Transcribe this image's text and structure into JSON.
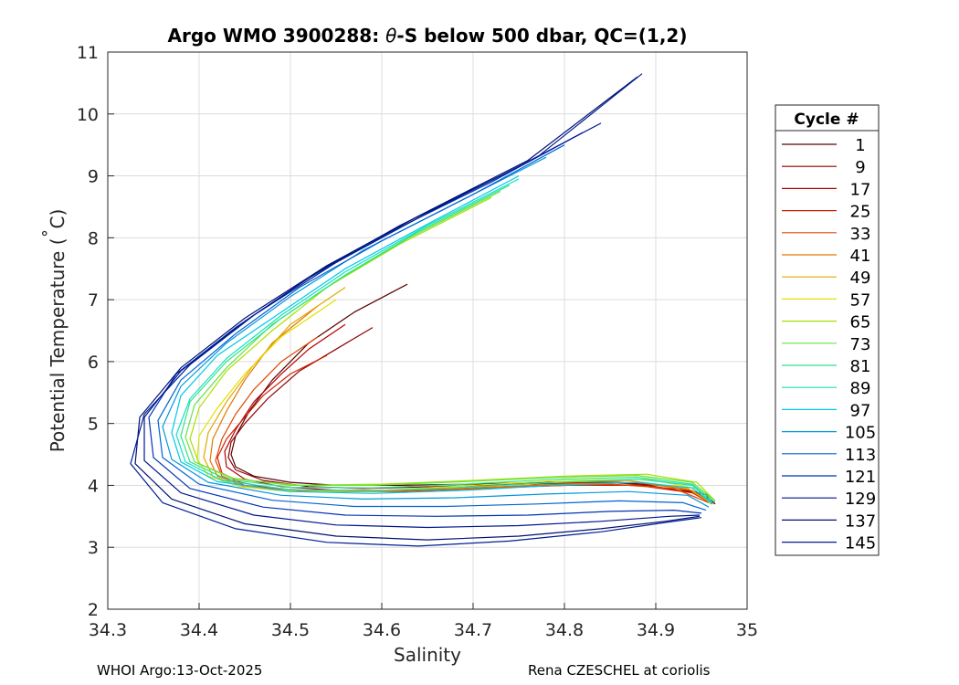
{
  "chart_data": {
    "type": "line",
    "title": "Argo WMO 3900288: θ-S below 500 dbar,  QC=(1,2)",
    "title_prefix": "Argo WMO 3900288: ",
    "title_theta": "θ",
    "title_suffix": "-S below 500 dbar,  QC=(1,2)",
    "xlabel": "Salinity",
    "ylabel_prefix": "Potential Temperature (",
    "ylabel_degree": "˚",
    "ylabel_suffix": "C)",
    "xlim": [
      34.3,
      35
    ],
    "ylim": [
      2,
      11
    ],
    "xticks": [
      34.3,
      34.4,
      34.5,
      34.6,
      34.7,
      34.8,
      34.9,
      35
    ],
    "xtick_labels": [
      "34.3",
      "34.4",
      "34.5",
      "34.6",
      "34.7",
      "34.8",
      "34.9",
      "35"
    ],
    "yticks": [
      2,
      3,
      4,
      5,
      6,
      7,
      8,
      9,
      10,
      11
    ],
    "ytick_labels": [
      "2",
      "3",
      "4",
      "5",
      "6",
      "7",
      "8",
      "9",
      "10",
      "11"
    ],
    "grid": true,
    "legend": {
      "title": "Cycle #",
      "placement": "right",
      "entries": [
        {
          "label": "1",
          "color": "#5a0000"
        },
        {
          "label": "9",
          "color": "#8c0000"
        },
        {
          "label": "17",
          "color": "#b40000"
        },
        {
          "label": "25",
          "color": "#d21e00"
        },
        {
          "label": "33",
          "color": "#e04800"
        },
        {
          "label": "41",
          "color": "#e27800"
        },
        {
          "label": "49",
          "color": "#e2a800"
        },
        {
          "label": "57",
          "color": "#e0e000"
        },
        {
          "label": "65",
          "color": "#a8e000"
        },
        {
          "label": "73",
          "color": "#66e24a"
        },
        {
          "label": "81",
          "color": "#2ee28a"
        },
        {
          "label": "89",
          "color": "#10e2c0"
        },
        {
          "label": "97",
          "color": "#00c8e6"
        },
        {
          "label": "105",
          "color": "#0098dc"
        },
        {
          "label": "113",
          "color": "#0064d2"
        },
        {
          "label": "121",
          "color": "#0034b4"
        },
        {
          "label": "129",
          "color": "#00148c"
        },
        {
          "label": "137",
          "color": "#00126e"
        },
        {
          "label": "145",
          "color": "#001e96"
        }
      ]
    },
    "series": [
      {
        "name": "1",
        "color": "#5a0000",
        "x": [
          34.628,
          34.57,
          34.52,
          34.48,
          34.455,
          34.44,
          34.435,
          34.44,
          34.46,
          34.5,
          34.55,
          34.62,
          34.7,
          34.78,
          34.86,
          34.92,
          34.955,
          34.96
        ],
        "y": [
          7.25,
          6.8,
          6.3,
          5.7,
          5.2,
          4.8,
          4.5,
          4.3,
          4.15,
          4.05,
          4.0,
          4.0,
          4.02,
          4.05,
          4.05,
          3.98,
          3.85,
          3.7
        ]
      },
      {
        "name": "9",
        "color": "#8c0000",
        "x": [
          34.59,
          34.55,
          34.51,
          34.475,
          34.45,
          34.435,
          34.432,
          34.44,
          34.47,
          34.52,
          34.58,
          34.66,
          34.75,
          34.84,
          34.91,
          34.955,
          34.965
        ],
        "y": [
          6.55,
          6.2,
          5.85,
          5.4,
          5.0,
          4.7,
          4.45,
          4.25,
          4.08,
          3.98,
          3.95,
          3.98,
          4.02,
          4.05,
          4.0,
          3.85,
          3.7
        ]
      },
      {
        "name": "17",
        "color": "#b40000",
        "x": [
          34.56,
          34.52,
          34.49,
          34.46,
          34.44,
          34.428,
          34.43,
          34.45,
          34.49,
          34.55,
          34.63,
          34.72,
          34.81,
          34.89,
          34.945,
          34.965
        ],
        "y": [
          6.6,
          6.2,
          5.8,
          5.35,
          4.9,
          4.55,
          4.3,
          4.1,
          3.98,
          3.92,
          3.92,
          3.97,
          4.02,
          4.0,
          3.88,
          3.7
        ]
      },
      {
        "name": "25",
        "color": "#d21e00",
        "x": [
          34.54,
          34.5,
          34.47,
          34.45,
          34.43,
          34.42,
          34.425,
          34.445,
          34.48,
          34.54,
          34.62,
          34.71,
          34.8,
          34.88,
          34.94,
          34.962
        ],
        "y": [
          6.1,
          5.8,
          5.45,
          5.1,
          4.75,
          4.45,
          4.2,
          4.05,
          3.95,
          3.9,
          3.9,
          3.95,
          4.0,
          4.0,
          3.88,
          3.7
        ]
      },
      {
        "name": "33",
        "color": "#e04800",
        "x": [
          34.53,
          34.49,
          34.46,
          34.44,
          34.425,
          34.418,
          34.425,
          34.45,
          34.5,
          34.57,
          34.66,
          34.76,
          34.85,
          34.92,
          34.958
        ],
        "y": [
          6.4,
          6.0,
          5.55,
          5.15,
          4.75,
          4.4,
          4.15,
          4.0,
          3.92,
          3.9,
          3.93,
          3.98,
          4.02,
          3.95,
          3.72
        ]
      },
      {
        "name": "41",
        "color": "#e27800",
        "x": [
          34.53,
          34.48,
          34.45,
          34.43,
          34.415,
          34.412,
          34.42,
          34.45,
          34.51,
          34.59,
          34.69,
          34.79,
          34.88,
          34.94,
          34.962
        ],
        "y": [
          6.9,
          6.3,
          5.7,
          5.2,
          4.75,
          4.4,
          4.15,
          3.98,
          3.9,
          3.9,
          3.95,
          4.02,
          4.05,
          3.92,
          3.7
        ]
      },
      {
        "name": "49",
        "color": "#e2a800",
        "x": [
          34.56,
          34.5,
          34.46,
          34.43,
          34.41,
          34.405,
          34.415,
          34.445,
          34.5,
          34.58,
          34.68,
          34.78,
          34.87,
          34.935,
          34.96
        ],
        "y": [
          7.2,
          6.6,
          5.95,
          5.35,
          4.85,
          4.45,
          4.15,
          3.98,
          3.9,
          3.9,
          3.96,
          4.04,
          4.08,
          3.95,
          3.72
        ]
      },
      {
        "name": "57",
        "color": "#e0e000",
        "x": [
          34.55,
          34.49,
          34.45,
          34.42,
          34.4,
          34.398,
          34.41,
          34.445,
          34.51,
          34.6,
          34.7,
          34.8,
          34.89,
          34.945,
          34.96
        ],
        "y": [
          7.0,
          6.4,
          5.8,
          5.25,
          4.8,
          4.42,
          4.15,
          3.98,
          3.9,
          3.92,
          4.0,
          4.08,
          4.1,
          3.95,
          3.7
        ]
      },
      {
        "name": "65",
        "color": "#a8e000",
        "x": [
          34.72,
          34.62,
          34.54,
          34.48,
          34.43,
          34.4,
          34.39,
          34.4,
          34.44,
          34.51,
          34.6,
          34.7,
          34.8,
          34.89,
          34.945,
          34.965
        ],
        "y": [
          8.65,
          7.9,
          7.2,
          6.5,
          5.85,
          5.25,
          4.75,
          4.35,
          4.1,
          4.0,
          4.02,
          4.08,
          4.15,
          4.18,
          4.05,
          3.75
        ]
      },
      {
        "name": "73",
        "color": "#66e24a",
        "x": [
          34.73,
          34.63,
          34.55,
          34.48,
          34.43,
          34.395,
          34.385,
          34.395,
          34.435,
          34.5,
          34.59,
          34.69,
          34.79,
          34.88,
          34.94,
          34.965
        ],
        "y": [
          8.75,
          8.0,
          7.3,
          6.6,
          5.9,
          5.3,
          4.78,
          4.38,
          4.12,
          4.0,
          4.0,
          4.06,
          4.13,
          4.16,
          4.05,
          3.75
        ]
      },
      {
        "name": "81",
        "color": "#2ee28a",
        "x": [
          34.74,
          34.64,
          34.56,
          34.49,
          34.43,
          34.39,
          34.38,
          34.39,
          34.43,
          34.5,
          34.59,
          34.69,
          34.79,
          34.88,
          34.94,
          34.965
        ],
        "y": [
          8.85,
          8.1,
          7.4,
          6.7,
          6.0,
          5.35,
          4.8,
          4.38,
          4.1,
          3.97,
          3.96,
          4.02,
          4.1,
          4.13,
          4.02,
          3.72
        ]
      },
      {
        "name": "89",
        "color": "#10e2c0",
        "x": [
          34.75,
          34.65,
          34.56,
          34.49,
          34.43,
          34.39,
          34.375,
          34.385,
          34.425,
          34.5,
          34.59,
          34.69,
          34.79,
          34.88,
          34.94,
          34.962
        ],
        "y": [
          8.95,
          8.2,
          7.45,
          6.75,
          6.05,
          5.4,
          4.82,
          4.38,
          4.08,
          3.93,
          3.91,
          3.97,
          4.05,
          4.1,
          4.0,
          3.72
        ]
      },
      {
        "name": "97",
        "color": "#00c8e6",
        "x": [
          34.75,
          34.65,
          34.56,
          34.49,
          34.42,
          34.38,
          34.37,
          34.38,
          34.42,
          34.5,
          34.59,
          34.69,
          34.79,
          34.88,
          34.94,
          34.962
        ],
        "y": [
          9.0,
          8.22,
          7.5,
          6.8,
          6.1,
          5.45,
          4.85,
          4.38,
          4.06,
          3.9,
          3.87,
          3.92,
          4.0,
          4.05,
          3.96,
          3.7
        ]
      },
      {
        "name": "105",
        "color": "#0098dc",
        "x": [
          34.78,
          34.68,
          34.58,
          34.5,
          34.43,
          34.38,
          34.36,
          34.37,
          34.41,
          34.49,
          34.58,
          34.68,
          34.78,
          34.87,
          34.935,
          34.958
        ],
        "y": [
          9.3,
          8.55,
          7.8,
          7.05,
          6.3,
          5.6,
          4.95,
          4.42,
          4.05,
          3.84,
          3.78,
          3.8,
          3.86,
          3.9,
          3.84,
          3.65
        ]
      },
      {
        "name": "113",
        "color": "#0064d2",
        "x": [
          34.8,
          34.7,
          34.6,
          34.51,
          34.44,
          34.38,
          34.355,
          34.36,
          34.4,
          34.48,
          34.57,
          34.67,
          34.77,
          34.86,
          34.93,
          34.955
        ],
        "y": [
          9.5,
          8.7,
          7.95,
          7.2,
          6.45,
          5.7,
          5.05,
          4.45,
          4.02,
          3.76,
          3.66,
          3.66,
          3.7,
          3.75,
          3.72,
          3.6
        ]
      },
      {
        "name": "121",
        "color": "#0034b4",
        "x": [
          34.82,
          34.72,
          34.61,
          34.52,
          34.44,
          34.375,
          34.345,
          34.35,
          34.39,
          34.47,
          34.56,
          34.66,
          34.76,
          34.85,
          34.92,
          34.95
        ],
        "y": [
          9.7,
          8.9,
          8.1,
          7.35,
          6.55,
          5.8,
          5.1,
          4.45,
          3.95,
          3.65,
          3.52,
          3.5,
          3.52,
          3.58,
          3.6,
          3.55
        ]
      },
      {
        "name": "129",
        "color": "#00148c",
        "x": [
          34.84,
          34.73,
          34.62,
          34.53,
          34.45,
          34.38,
          34.34,
          34.34,
          34.38,
          34.46,
          34.55,
          34.65,
          34.75,
          34.84,
          34.915,
          34.948
        ],
        "y": [
          9.85,
          9.0,
          8.2,
          7.45,
          6.65,
          5.85,
          5.1,
          4.4,
          3.88,
          3.52,
          3.36,
          3.32,
          3.35,
          3.42,
          3.5,
          3.52
        ]
      },
      {
        "name": "137",
        "color": "#00126e",
        "x": [
          34.88,
          34.76,
          34.64,
          34.54,
          34.45,
          34.38,
          34.335,
          34.33,
          34.37,
          34.45,
          34.55,
          34.65,
          34.75,
          34.84,
          34.91,
          34.948
        ],
        "y": [
          10.6,
          9.25,
          8.35,
          7.55,
          6.7,
          5.9,
          5.1,
          4.35,
          3.78,
          3.38,
          3.18,
          3.12,
          3.18,
          3.3,
          3.42,
          3.5
        ]
      },
      {
        "name": "145",
        "color": "#001e96",
        "x": [
          34.885,
          34.77,
          34.65,
          34.55,
          34.46,
          34.39,
          34.34,
          34.325,
          34.36,
          34.44,
          34.54,
          34.64,
          34.74,
          34.84,
          34.91,
          34.95
        ],
        "y": [
          10.65,
          9.3,
          8.4,
          7.6,
          6.75,
          5.95,
          5.15,
          4.35,
          3.72,
          3.3,
          3.08,
          3.02,
          3.1,
          3.25,
          3.4,
          3.48
        ]
      }
    ]
  },
  "footer": {
    "left": "WHOI Argo:13-Oct-2025",
    "right": "Rena CZESCHEL at coriolis"
  }
}
